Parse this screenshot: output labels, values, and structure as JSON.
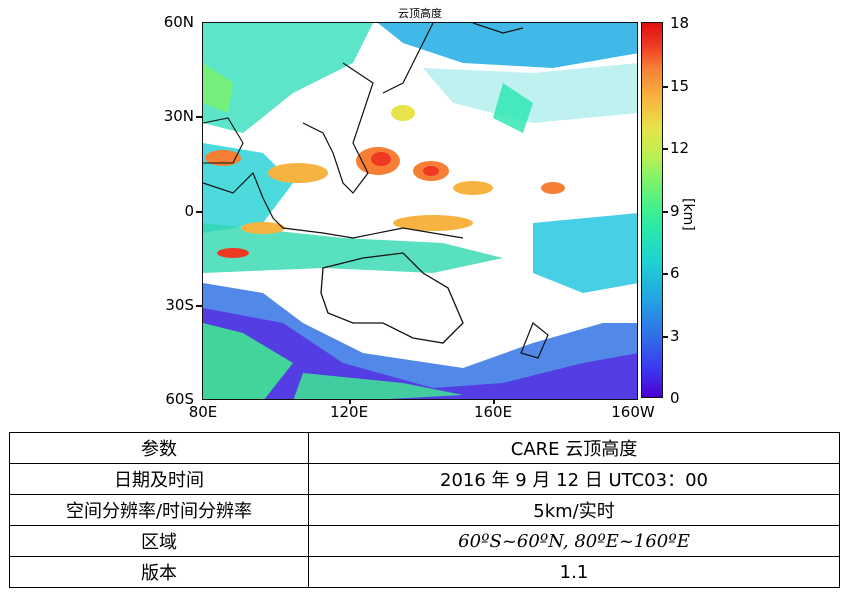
{
  "figure": {
    "title": "云顶高度",
    "y_ticks": [
      "60N",
      "30N",
      "0",
      "30S",
      "60S"
    ],
    "x_ticks": [
      "80E",
      "120E",
      "160E",
      "160W"
    ],
    "colorbar": {
      "ticks": [
        "18",
        "15",
        "12",
        "9",
        "6",
        "3",
        "0"
      ],
      "unit": "[km]",
      "min": 0,
      "max": 18,
      "colormap": [
        "#4b00d6",
        "#2f6ee8",
        "#1fd1d3",
        "#3ff08e",
        "#b8f052",
        "#f7b33f",
        "#ee3a22",
        "#e01010"
      ]
    }
  },
  "table": {
    "rows": [
      {
        "key": "参数",
        "value": "CARE 云顶高度"
      },
      {
        "key": "日期及时间",
        "value": "2016 年 9 月 12 日 UTC03：00"
      },
      {
        "key": "空间分辨率/时间分辨率",
        "value": "5km/实时"
      },
      {
        "key": "区域",
        "value": "60ºS~60ºN, 80ºE~160ºE"
      },
      {
        "key": "版本",
        "value": "1.1"
      }
    ]
  }
}
